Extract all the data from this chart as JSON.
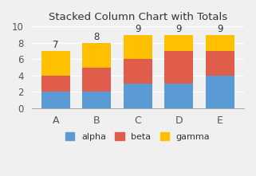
{
  "categories": [
    "A",
    "B",
    "C",
    "D",
    "E"
  ],
  "alpha": [
    2,
    2,
    3,
    3,
    4
  ],
  "beta": [
    2,
    3,
    3,
    4,
    3
  ],
  "gamma": [
    3,
    3,
    3,
    2,
    2
  ],
  "totals": [
    7,
    8,
    9,
    9,
    9
  ],
  "alpha_color": "#5b9bd5",
  "beta_color": "#e05c4b",
  "gamma_color": "#ffc000",
  "bg_color": "#f0f0f0",
  "title": "Stacked Column Chart with Totals",
  "ylim": [
    0,
    10
  ],
  "yticks": [
    0,
    2,
    4,
    6,
    8,
    10
  ],
  "legend_labels": [
    "alpha",
    "beta",
    "gamma"
  ],
  "bar_width": 0.7
}
